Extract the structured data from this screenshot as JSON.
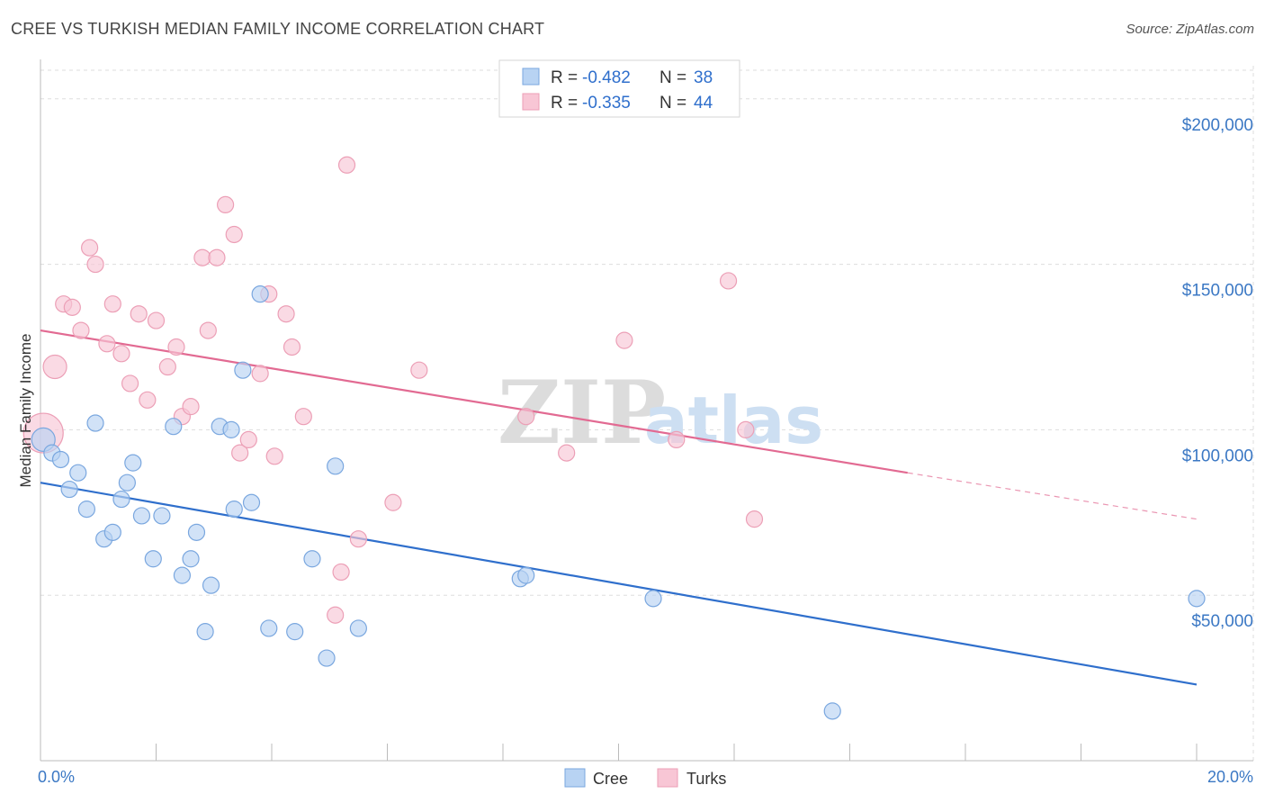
{
  "title": "CREE VS TURKISH MEDIAN FAMILY INCOME CORRELATION CHART",
  "source": "Source: ZipAtlas.com",
  "watermark": {
    "zip": "ZIP",
    "atlas": "atlas"
  },
  "colors": {
    "cree_fill": "#b8d3f3",
    "cree_stroke": "#7aa7df",
    "cree_line": "#2f6fcc",
    "turks_fill": "#f8c6d5",
    "turks_stroke": "#ec9fb6",
    "turks_line": "#e26a92",
    "grid": "#dddddd",
    "tick_label": "#3b78c4"
  },
  "legend": {
    "rows": [
      {
        "r_label": "R =",
        "r_value": "-0.482",
        "n_label": "N =",
        "n_value": "38"
      },
      {
        "r_label": "R =",
        "r_value": "-0.335",
        "n_label": "N =",
        "n_value": "44"
      }
    ]
  },
  "bottom_legend": [
    "Cree",
    "Turks"
  ],
  "chart_data": {
    "type": "scatter",
    "title": "CREE VS TURKISH MEDIAN FAMILY INCOME CORRELATION CHART",
    "xlabel": "",
    "ylabel": "Median Family Income",
    "xlim": [
      0,
      20
    ],
    "ylim": [
      0,
      210000
    ],
    "x_tick_labels": [
      "0.0%",
      "20.0%"
    ],
    "y_ticks": [
      50000,
      100000,
      150000,
      200000
    ],
    "y_tick_labels": [
      "$50,000",
      "$100,000",
      "$150,000",
      "$200,000"
    ],
    "grid": true,
    "legend_position": "top-center",
    "series": [
      {
        "name": "Cree",
        "r": -0.482,
        "n": 38,
        "trend": {
          "x": [
            0,
            20
          ],
          "y": [
            84000,
            23000
          ]
        },
        "points": [
          {
            "x": 0.05,
            "y": 97000,
            "size": "large"
          },
          {
            "x": 0.2,
            "y": 93000
          },
          {
            "x": 0.35,
            "y": 91000
          },
          {
            "x": 0.5,
            "y": 82000
          },
          {
            "x": 0.65,
            "y": 87000
          },
          {
            "x": 0.8,
            "y": 76000
          },
          {
            "x": 0.95,
            "y": 102000
          },
          {
            "x": 1.1,
            "y": 67000
          },
          {
            "x": 1.25,
            "y": 69000
          },
          {
            "x": 1.4,
            "y": 79000
          },
          {
            "x": 1.5,
            "y": 84000
          },
          {
            "x": 1.6,
            "y": 90000
          },
          {
            "x": 1.75,
            "y": 74000
          },
          {
            "x": 1.95,
            "y": 61000
          },
          {
            "x": 2.1,
            "y": 74000
          },
          {
            "x": 2.3,
            "y": 101000
          },
          {
            "x": 2.45,
            "y": 56000
          },
          {
            "x": 2.6,
            "y": 61000
          },
          {
            "x": 2.7,
            "y": 69000
          },
          {
            "x": 2.85,
            "y": 39000
          },
          {
            "x": 2.95,
            "y": 53000
          },
          {
            "x": 3.1,
            "y": 101000
          },
          {
            "x": 3.3,
            "y": 100000
          },
          {
            "x": 3.35,
            "y": 76000
          },
          {
            "x": 3.5,
            "y": 118000
          },
          {
            "x": 3.65,
            "y": 78000
          },
          {
            "x": 3.8,
            "y": 141000
          },
          {
            "x": 3.95,
            "y": 40000
          },
          {
            "x": 4.4,
            "y": 39000
          },
          {
            "x": 4.7,
            "y": 61000
          },
          {
            "x": 4.95,
            "y": 31000
          },
          {
            "x": 5.1,
            "y": 89000
          },
          {
            "x": 5.5,
            "y": 40000
          },
          {
            "x": 8.3,
            "y": 55000
          },
          {
            "x": 8.4,
            "y": 56000
          },
          {
            "x": 10.6,
            "y": 49000
          },
          {
            "x": 13.7,
            "y": 15000
          },
          {
            "x": 20.0,
            "y": 49000
          }
        ]
      },
      {
        "name": "Turks",
        "r": -0.335,
        "n": 44,
        "trend": {
          "x": [
            0,
            15
          ],
          "y": [
            130000,
            87000
          ],
          "dashed_to": {
            "x": 20,
            "y": 73000
          }
        },
        "points": [
          {
            "x": 0.05,
            "y": 99000,
            "size": "xlarge"
          },
          {
            "x": 0.25,
            "y": 119000,
            "size": "large"
          },
          {
            "x": 0.4,
            "y": 138000
          },
          {
            "x": 0.55,
            "y": 137000
          },
          {
            "x": 0.7,
            "y": 130000
          },
          {
            "x": 0.85,
            "y": 155000
          },
          {
            "x": 0.95,
            "y": 150000
          },
          {
            "x": 1.15,
            "y": 126000
          },
          {
            "x": 1.25,
            "y": 138000
          },
          {
            "x": 1.4,
            "y": 123000
          },
          {
            "x": 1.55,
            "y": 114000
          },
          {
            "x": 1.7,
            "y": 135000
          },
          {
            "x": 1.85,
            "y": 109000
          },
          {
            "x": 2.0,
            "y": 133000
          },
          {
            "x": 2.2,
            "y": 119000
          },
          {
            "x": 2.35,
            "y": 125000
          },
          {
            "x": 2.45,
            "y": 104000
          },
          {
            "x": 2.6,
            "y": 107000
          },
          {
            "x": 2.8,
            "y": 152000
          },
          {
            "x": 2.9,
            "y": 130000
          },
          {
            "x": 3.05,
            "y": 152000
          },
          {
            "x": 3.2,
            "y": 168000
          },
          {
            "x": 3.35,
            "y": 159000
          },
          {
            "x": 3.45,
            "y": 93000
          },
          {
            "x": 3.6,
            "y": 97000
          },
          {
            "x": 3.8,
            "y": 117000
          },
          {
            "x": 3.95,
            "y": 141000
          },
          {
            "x": 4.05,
            "y": 92000
          },
          {
            "x": 4.25,
            "y": 135000
          },
          {
            "x": 4.35,
            "y": 125000
          },
          {
            "x": 4.55,
            "y": 104000
          },
          {
            "x": 5.1,
            "y": 44000
          },
          {
            "x": 5.2,
            "y": 57000
          },
          {
            "x": 5.3,
            "y": 180000
          },
          {
            "x": 5.5,
            "y": 67000
          },
          {
            "x": 6.1,
            "y": 78000
          },
          {
            "x": 6.55,
            "y": 118000
          },
          {
            "x": 8.4,
            "y": 104000
          },
          {
            "x": 9.1,
            "y": 93000
          },
          {
            "x": 10.1,
            "y": 127000
          },
          {
            "x": 11.0,
            "y": 97000
          },
          {
            "x": 11.9,
            "y": 145000
          },
          {
            "x": 12.2,
            "y": 100000
          },
          {
            "x": 12.35,
            "y": 73000
          }
        ]
      }
    ]
  }
}
